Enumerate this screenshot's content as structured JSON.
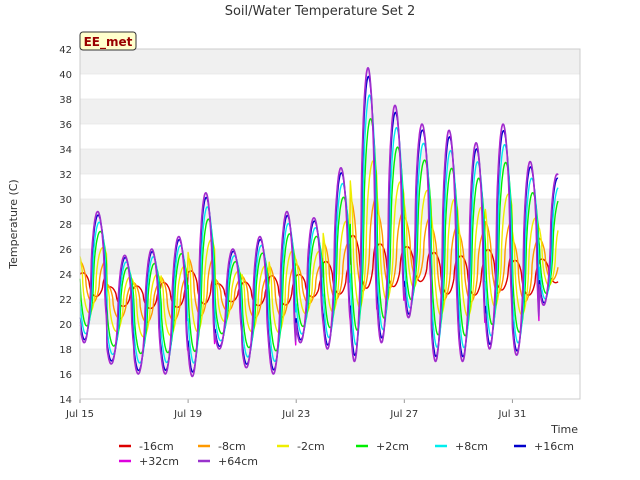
{
  "chart_data": {
    "type": "line",
    "title": "Soil/Water Temperature Set 2",
    "xlabel": "Time",
    "ylabel": "Temperature (C)",
    "site_badge": "EE_met",
    "xlim": [
      0,
      18.5
    ],
    "ylim": [
      14,
      42
    ],
    "grid": true,
    "legend_position": "bottom",
    "x_ticks": [
      {
        "x": 0,
        "label": "Jul 15"
      },
      {
        "x": 4,
        "label": "Jul 19"
      },
      {
        "x": 8,
        "label": "Jul 23"
      },
      {
        "x": 12,
        "label": "Jul 27"
      },
      {
        "x": 16,
        "label": "Jul 31"
      }
    ],
    "y_ticks": [
      14,
      16,
      18,
      20,
      22,
      24,
      26,
      28,
      30,
      32,
      34,
      36,
      38,
      40,
      42
    ],
    "day_extremes": [
      {
        "day": 0,
        "min": 18.5,
        "max": 29.0
      },
      {
        "day": 1,
        "min": 16.8,
        "max": 25.5
      },
      {
        "day": 2,
        "min": 16.0,
        "max": 26.0
      },
      {
        "day": 3,
        "min": 16.0,
        "max": 27.0
      },
      {
        "day": 4,
        "min": 15.8,
        "max": 30.5
      },
      {
        "day": 5,
        "min": 18.0,
        "max": 26.0
      },
      {
        "day": 6,
        "min": 16.5,
        "max": 27.0
      },
      {
        "day": 7,
        "min": 16.0,
        "max": 29.0
      },
      {
        "day": 8,
        "min": 18.5,
        "max": 28.5
      },
      {
        "day": 9,
        "min": 18.0,
        "max": 32.5
      },
      {
        "day": 10,
        "min": 17.0,
        "max": 40.5
      },
      {
        "day": 11,
        "min": 18.5,
        "max": 37.5
      },
      {
        "day": 12,
        "min": 20.5,
        "max": 36.0
      },
      {
        "day": 13,
        "min": 17.0,
        "max": 35.5
      },
      {
        "day": 14,
        "min": 17.0,
        "max": 34.5
      },
      {
        "day": 15,
        "min": 18.0,
        "max": 36.0
      },
      {
        "day": 16,
        "min": 17.5,
        "max": 33.0
      },
      {
        "day": 17,
        "min": 21.5,
        "max": 32.0
      }
    ],
    "series": [
      {
        "name": "-16cm",
        "color": "#dd0000",
        "amp": 0.18,
        "lag": 0.45,
        "base": 0.72
      },
      {
        "name": "-8cm",
        "color": "#ff9900",
        "amp": 0.32,
        "lag": 0.32,
        "base": 0.45
      },
      {
        "name": "-2cm",
        "color": "#eeee00",
        "amp": 0.5,
        "lag": 0.2,
        "base": 0.3
      },
      {
        "name": "+2cm",
        "color": "#00ee00",
        "amp": 0.72,
        "lag": 0.1,
        "base": 0.15
      },
      {
        "name": "+8cm",
        "color": "#00eeee",
        "amp": 0.85,
        "lag": 0.06,
        "base": 0.08
      },
      {
        "name": "+16cm",
        "color": "#0000cc",
        "amp": 0.95,
        "lag": 0.02,
        "base": 0.02
      },
      {
        "name": "+32cm",
        "color": "#dd00dd",
        "amp": 1.0,
        "lag": 0.0,
        "base": 0.0
      },
      {
        "name": "+64cm",
        "color": "#9933cc",
        "amp": 1.0,
        "lag": 0.01,
        "base": 0.0
      }
    ]
  }
}
